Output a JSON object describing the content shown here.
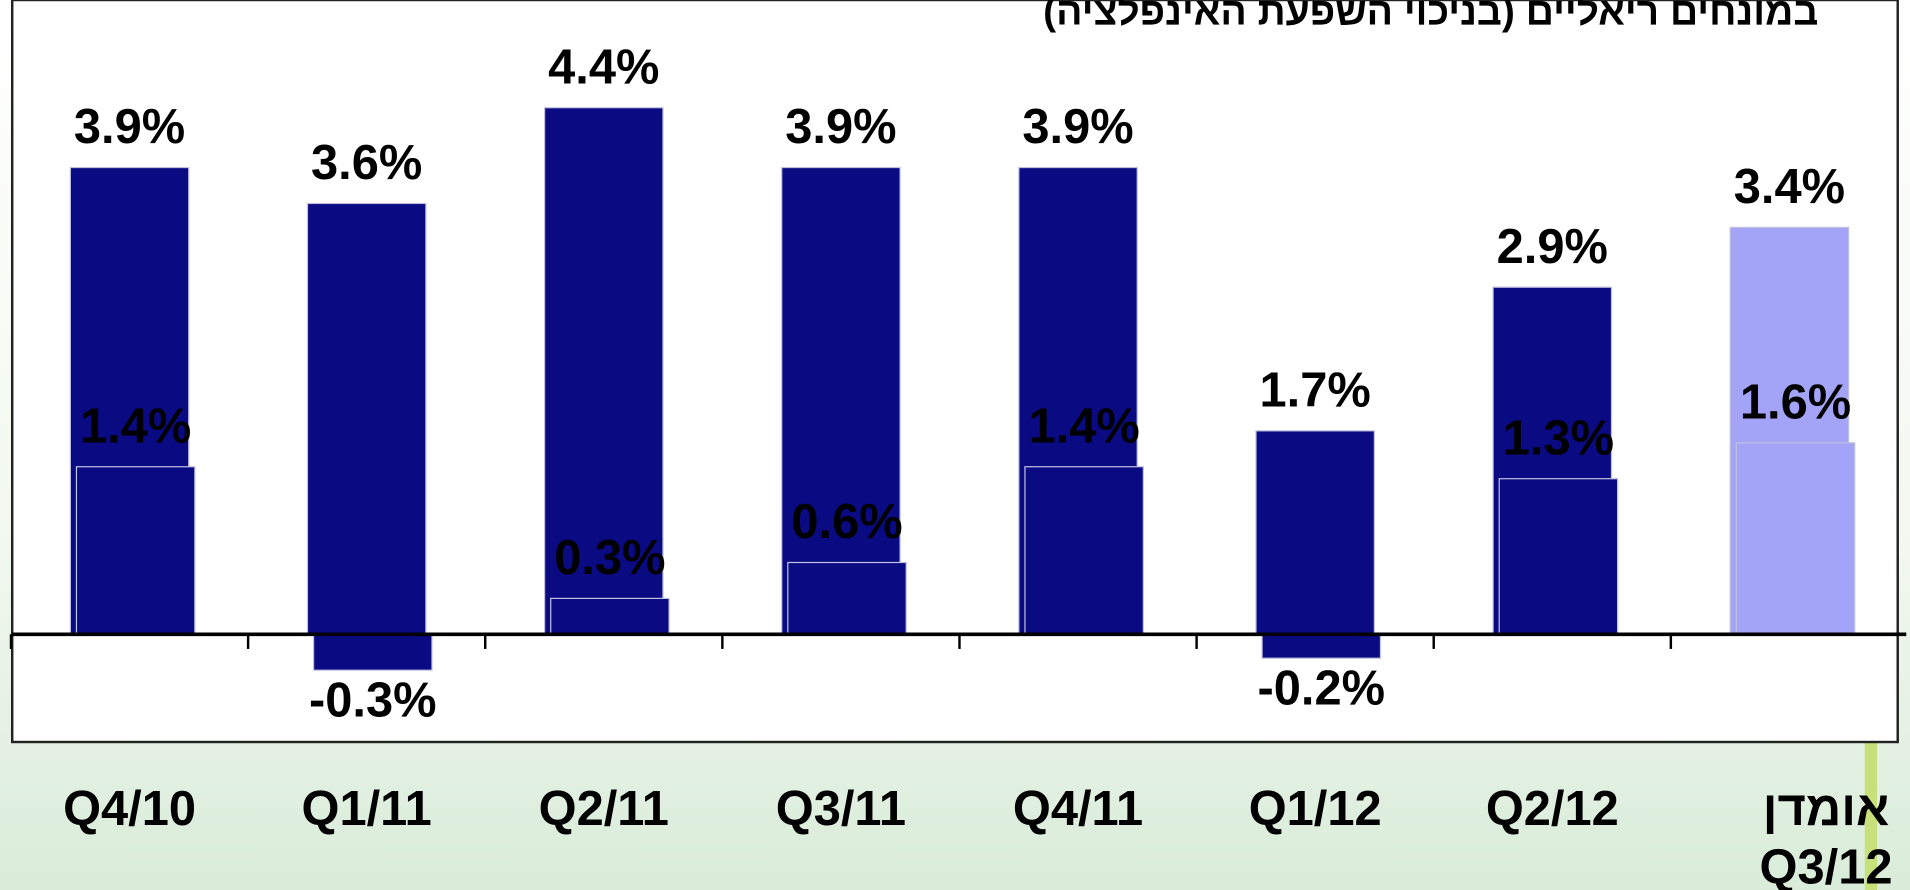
{
  "chart_data": {
    "type": "bar",
    "title": "במונחים ריאליים (בניכוי השפעת האינפלציה)",
    "categories": [
      "Q4/10",
      "Q1/11",
      "Q2/11",
      "Q3/11",
      "Q4/11",
      "Q1/12",
      "Q2/12",
      "אומדן Q3/12"
    ],
    "series": [
      {
        "colors": [
          "#0a0a82",
          "#0a0a82",
          "#0a0a82",
          "#0a0a82",
          "#0a0a82",
          "#0a0a82",
          "#0a0a82",
          "#a3a3f7"
        ],
        "values": [
          3.9,
          3.6,
          4.4,
          3.9,
          3.9,
          1.7,
          2.9,
          3.4
        ],
        "value_labels": [
          "3.9%",
          "3.6%",
          "4.4%",
          "3.9%",
          "3.9%",
          "1.7%",
          "2.9%",
          "3.4%"
        ]
      },
      {
        "colors": [
          "#0a0a82",
          "#0a0a82",
          "#0a0a82",
          "#0a0a82",
          "#0a0a82",
          "#0a0a82",
          "#0a0a82",
          "#a3a3f7"
        ],
        "values": [
          1.4,
          -0.3,
          0.3,
          0.6,
          1.4,
          -0.2,
          1.3,
          1.6
        ],
        "value_labels": [
          "1.4%",
          "-0.3%",
          "0.3%",
          "0.6%",
          "1.4%",
          "-0.2%",
          "1.3%",
          "1.6%"
        ]
      }
    ],
    "ylim": [
      -0.9,
      5.3
    ]
  }
}
